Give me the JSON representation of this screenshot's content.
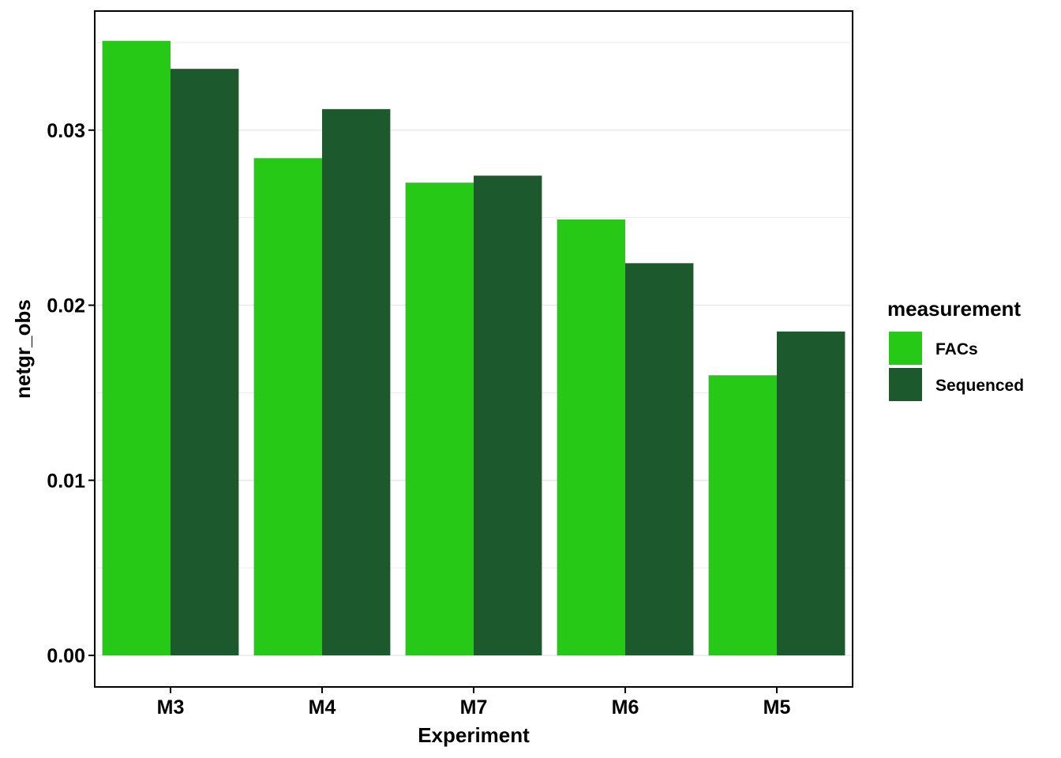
{
  "chart_data": {
    "type": "bar",
    "categories": [
      "M3",
      "M4",
      "M7",
      "M6",
      "M5"
    ],
    "series": [
      {
        "name": "FACs",
        "values": [
          0.0351,
          0.0284,
          0.027,
          0.0249,
          0.016
        ],
        "color": "#26C916"
      },
      {
        "name": "Sequenced",
        "values": [
          0.0335,
          0.0312,
          0.0274,
          0.0224,
          0.0185
        ],
        "color": "#1C5A2D"
      }
    ],
    "xlabel": "Experiment",
    "ylabel": "netgr_obs",
    "ylim": [
      -0.0018,
      0.0368
    ],
    "yticks": [
      0.0,
      0.01,
      0.02,
      0.03
    ],
    "ytick_labels": [
      "0.00",
      "0.01",
      "0.02",
      "0.03"
    ],
    "minor_gridlines": [
      0.005,
      0.015,
      0.025,
      0.035
    ],
    "grid": "major-and-minor horizontal",
    "legend": {
      "title": "measurement",
      "placement": "right"
    },
    "gridline_color": "#EBEBEB",
    "axis_color": "#000000"
  }
}
